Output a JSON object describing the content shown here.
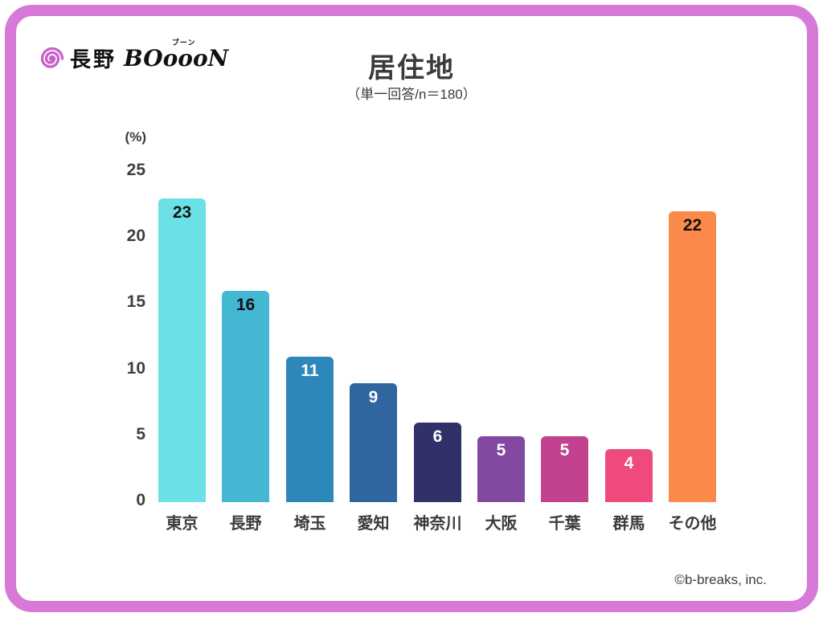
{
  "logo": {
    "kanji": "長野",
    "furigana": "ブーン",
    "latin": "BOoooN"
  },
  "header": {
    "title": "居住地",
    "subtitle": "（単一回答/n＝180）"
  },
  "chart_data": {
    "type": "bar",
    "title": "居住地",
    "subtitle": "（単一回答/n＝180）",
    "unit_label": "(%)",
    "categories": [
      "東京",
      "長野",
      "埼玉",
      "愛知",
      "神奈川",
      "大阪",
      "千葉",
      "群馬",
      "その他"
    ],
    "values": [
      23,
      16,
      11,
      9,
      6,
      5,
      5,
      4,
      22
    ],
    "bar_colors": [
      "#6be0e6",
      "#44b7d3",
      "#2e87b9",
      "#30659f",
      "#2f3168",
      "#83489f",
      "#c2428f",
      "#f04a7d",
      "#fb8a4a"
    ],
    "value_label_colors": [
      "#111111",
      "#111111",
      "#ffffff",
      "#ffffff",
      "#ffffff",
      "#ffffff",
      "#ffffff",
      "#ffffff",
      "#111111"
    ],
    "yticks": [
      0,
      5,
      10,
      15,
      20,
      25
    ],
    "ylim": [
      0,
      25
    ],
    "grid": false,
    "legend": false
  },
  "footer": {
    "copyright": "©b-breaks, inc."
  },
  "colors": {
    "frame_pink": "#d77ad7",
    "spiral_pink": "#c95fc9",
    "text_dark": "#3a3a3a"
  }
}
